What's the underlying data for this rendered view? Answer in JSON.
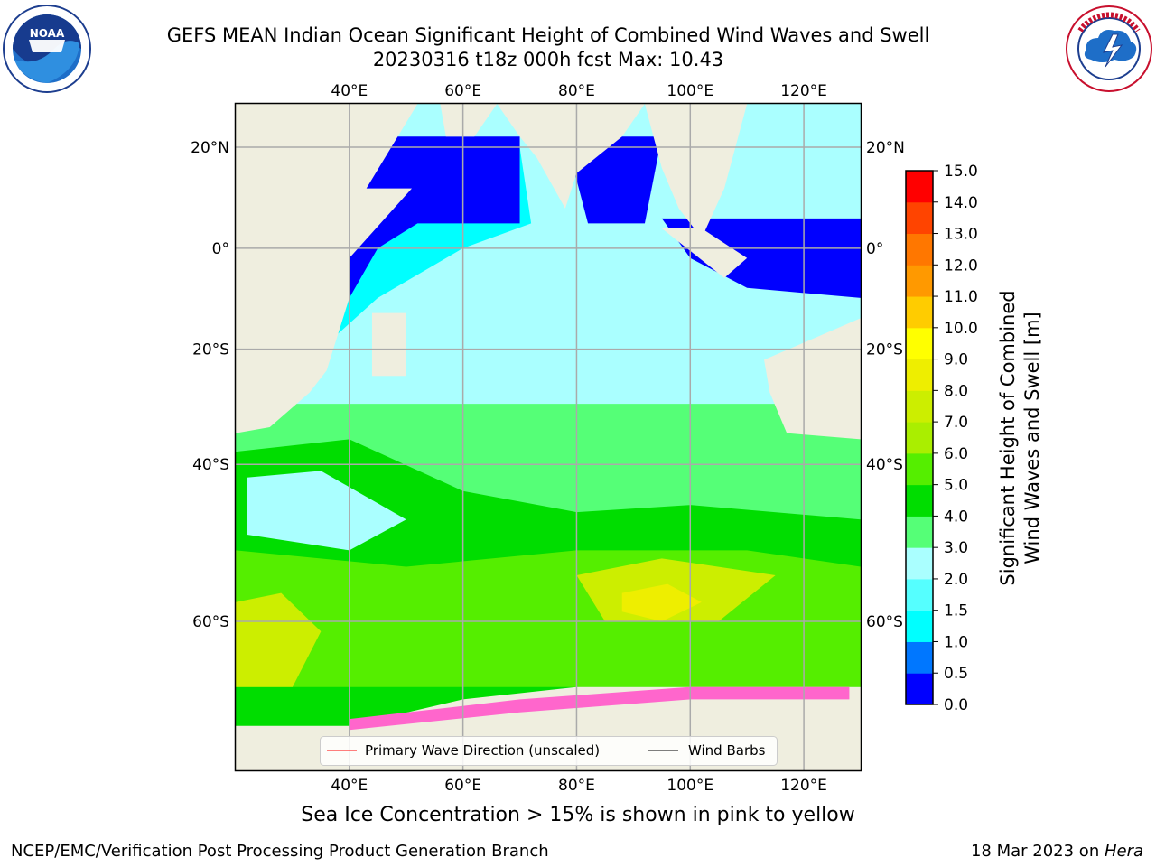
{
  "title": {
    "line1": "GEFS MEAN Indian Ocean Significant Height of Combined Wind Waves and Swell",
    "line2": "20230316 t18z 000h fcst   Max: 10.43"
  },
  "logos": {
    "left": {
      "name": "noaa-logo",
      "text": "NOAA",
      "ring_text": "NATIONAL OCEANIC AND ATMOSPHERIC ADMINISTRATION · U.S. DEPARTMENT OF COMMERCE"
    },
    "right": {
      "name": "nws-logo",
      "ring_text": "NATIONAL WEATHER SERVICE"
    }
  },
  "map": {
    "region": "Indian Ocean",
    "lon_range": [
      20,
      130
    ],
    "lat_range": [
      -72,
      28
    ],
    "lon_ticks": [
      "40°E",
      "60°E",
      "80°E",
      "100°E",
      "120°E"
    ],
    "lat_ticks_left": [
      "20°N",
      "0°",
      "20°S",
      "40°S",
      "60°S"
    ],
    "lat_ticks_right": [
      "20°N",
      "0°",
      "20°S",
      "40°S",
      "60°S"
    ],
    "land_color": "#efeedf",
    "grid": true
  },
  "colorbar": {
    "label_line1": "Significant Height of Combined",
    "label_line2": "Wind Waves and Swell [m]",
    "units": "m",
    "ticks": [
      "0.0",
      "0.5",
      "1.0",
      "1.5",
      "2.0",
      "3.0",
      "4.0",
      "5.0",
      "6.0",
      "7.0",
      "8.0",
      "9.0",
      "10.0",
      "11.0",
      "12.0",
      "13.0",
      "14.0",
      "15.0"
    ],
    "colors": [
      "#0000ff",
      "#0077ff",
      "#00ffff",
      "#55ffff",
      "#aaffff",
      "#55ff77",
      "#00dd00",
      "#55ee00",
      "#aaee00",
      "#ccee00",
      "#eeee00",
      "#ffff00",
      "#ffcc00",
      "#ff9900",
      "#ff7700",
      "#ff4400",
      "#ff0000"
    ]
  },
  "legend": {
    "items": [
      {
        "label": "Primary Wave Direction (unscaled)",
        "color": "#ff0000"
      },
      {
        "label": "Wind Barbs",
        "color": "#000000"
      }
    ]
  },
  "caption": "Sea Ice Concentration > 15% is shown in pink to yellow",
  "footer": {
    "credit": "NCEP/EMC/Verification Post Processing Product Generation Branch",
    "date_prefix": "18 Mar 2023 on ",
    "date_host": "Hera"
  }
}
